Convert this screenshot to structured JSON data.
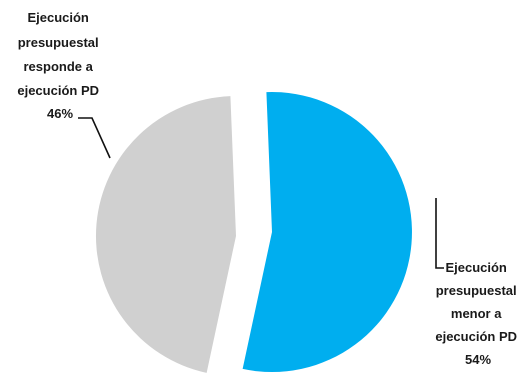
{
  "chart_data": {
    "type": "pie",
    "title": "",
    "exploded": true,
    "slices": [
      {
        "label_lines": [
          "Ejecución",
          "presupuestal",
          "responde a",
          "ejecución PD",
          "46%"
        ],
        "value": 46,
        "color": "#D0D0D0"
      },
      {
        "label_lines": [
          "Ejecución",
          "presupuestal",
          "menor a",
          "ejecución PD",
          "54%"
        ],
        "value": 54,
        "color": "#00AEEF"
      }
    ]
  }
}
